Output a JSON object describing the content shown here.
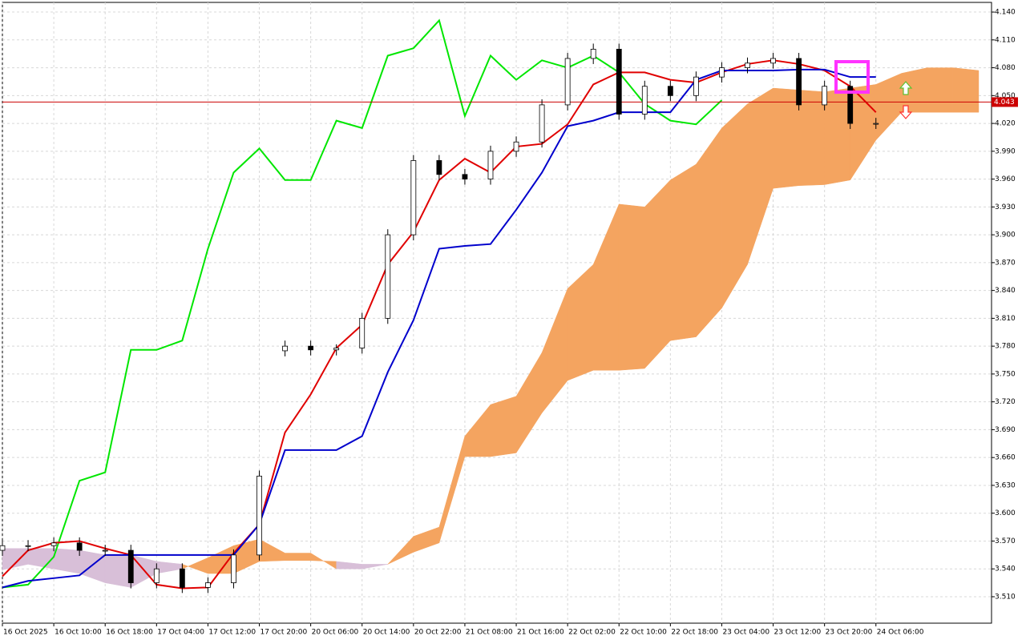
{
  "chart_data": {
    "type": "ichimoku",
    "xlim": [
      0,
      154
    ],
    "ylim": [
      3.4815,
      4.1504
    ],
    "grid": true,
    "xticks": [
      {
        "value": 0,
        "label": "16 Oct 2025"
      },
      {
        "value": 8,
        "label": "16 Oct 10:00"
      },
      {
        "value": 16,
        "label": "16 Oct 18:00"
      },
      {
        "value": 24,
        "label": "17 Oct 04:00"
      },
      {
        "value": 32,
        "label": "17 Oct 12:00"
      },
      {
        "value": 40,
        "label": "17 Oct 20:00"
      },
      {
        "value": 48,
        "label": "20 Oct 06:00"
      },
      {
        "value": 56,
        "label": "20 Oct 14:00"
      },
      {
        "value": 64,
        "label": "20 Oct 22:00"
      },
      {
        "value": 72,
        "label": "21 Oct 08:00"
      },
      {
        "value": 80,
        "label": "21 Oct 16:00"
      },
      {
        "value": 88,
        "label": "22 Oct 02:00"
      },
      {
        "value": 96,
        "label": "22 Oct 10:00"
      },
      {
        "value": 104,
        "label": "22 Oct 18:00"
      },
      {
        "value": 112,
        "label": "23 Oct 04:00"
      },
      {
        "value": 120,
        "label": "23 Oct 12:00"
      },
      {
        "value": 128,
        "label": "23 Oct 20:00"
      },
      {
        "value": 136,
        "label": "24 Oct 06:00"
      }
    ],
    "yticks": [
      {
        "value": 3.51,
        "label": "3.510"
      },
      {
        "value": 3.54,
        "label": "3.540"
      },
      {
        "value": 3.57,
        "label": "3.570"
      },
      {
        "value": 3.6,
        "label": "3.600"
      },
      {
        "value": 3.63,
        "label": "3.630"
      },
      {
        "value": 3.66,
        "label": "3.660"
      },
      {
        "value": 3.69,
        "label": "3.690"
      },
      {
        "value": 3.72,
        "label": "3.720"
      },
      {
        "value": 3.75,
        "label": "3.750"
      },
      {
        "value": 3.78,
        "label": "3.780"
      },
      {
        "value": 3.81,
        "label": "3.810"
      },
      {
        "value": 3.84,
        "label": "3.840"
      },
      {
        "value": 3.87,
        "label": "3.870"
      },
      {
        "value": 3.9,
        "label": "3.900"
      },
      {
        "value": 3.93,
        "label": "3.930"
      },
      {
        "value": 3.96,
        "label": "3.960"
      },
      {
        "value": 3.99,
        "label": "3.990"
      },
      {
        "value": 4.02,
        "label": "4.020"
      },
      {
        "value": 4.05,
        "label": "4.050"
      },
      {
        "value": 4.08,
        "label": "4.080"
      },
      {
        "value": 4.11,
        "label": "4.110"
      },
      {
        "value": 4.14,
        "label": "4.140"
      }
    ],
    "last_price": {
      "value": 4.043,
      "label": "4.043"
    },
    "x": [
      0,
      4,
      8,
      12,
      16,
      20,
      24,
      28,
      32,
      36,
      40,
      44,
      48,
      52,
      56,
      60,
      64,
      68,
      72,
      76,
      80,
      84,
      88,
      92,
      96,
      100,
      104,
      108,
      112,
      116,
      120,
      124,
      128,
      132,
      136
    ],
    "candles": {
      "open": [
        3.56,
        3.565,
        3.565,
        3.568,
        3.56,
        3.56,
        3.525,
        3.54,
        3.52,
        3.525,
        3.555,
        3.775,
        3.78,
        3.776,
        3.778,
        3.81,
        3.9,
        3.98,
        3.965,
        3.96,
        3.99,
        4.0,
        4.04,
        4.09,
        4.1,
        4.03,
        4.06,
        4.05,
        4.07,
        4.08,
        4.085,
        4.09,
        4.04,
        4.06,
        4.02
      ],
      "high": [
        3.571,
        3.571,
        3.574,
        3.574,
        3.566,
        3.566,
        3.546,
        3.546,
        3.531,
        3.561,
        3.646,
        3.786,
        3.786,
        3.782,
        3.816,
        3.906,
        3.986,
        3.986,
        3.971,
        3.996,
        4.006,
        4.046,
        4.096,
        4.106,
        4.106,
        4.066,
        4.066,
        4.076,
        4.086,
        4.091,
        4.096,
        4.096,
        4.066,
        4.066,
        4.026
      ],
      "low": [
        3.554,
        3.559,
        3.559,
        3.554,
        3.554,
        3.519,
        3.519,
        3.514,
        3.514,
        3.519,
        3.549,
        3.769,
        3.77,
        3.77,
        3.772,
        3.804,
        3.894,
        3.959,
        3.954,
        3.954,
        3.984,
        3.994,
        4.034,
        4.084,
        4.024,
        4.024,
        4.044,
        4.044,
        4.064,
        4.074,
        4.079,
        4.034,
        4.034,
        4.014,
        4.014
      ],
      "close": [
        3.565,
        3.565,
        3.568,
        3.56,
        3.56,
        3.525,
        3.54,
        3.52,
        3.525,
        3.555,
        3.64,
        3.78,
        3.776,
        3.778,
        3.81,
        3.9,
        3.98,
        3.965,
        3.96,
        3.99,
        4.0,
        4.04,
        4.09,
        4.1,
        4.03,
        4.06,
        4.05,
        4.07,
        4.08,
        4.085,
        4.09,
        4.04,
        4.06,
        4.02,
        4.02
      ]
    },
    "series": [
      {
        "color": "#00e600",
        "values": [
          3.52,
          3.523,
          3.553,
          3.635,
          3.644,
          3.776,
          3.776,
          3.786,
          3.885,
          3.967,
          3.993,
          3.959,
          3.959,
          4.023,
          4.015,
          4.093,
          4.101,
          4.131,
          4.028,
          4.093,
          4.067,
          4.088,
          4.08,
          4.093,
          4.075,
          4.041,
          4.023,
          4.019,
          4.045,
          null,
          null,
          null,
          null,
          null,
          null
        ]
      },
      {
        "color": "#e00000",
        "values": [
          3.532,
          3.56,
          3.568,
          3.57,
          3.562,
          3.555,
          3.523,
          3.519,
          3.52,
          3.557,
          3.588,
          3.687,
          3.728,
          3.778,
          3.803,
          3.868,
          3.903,
          3.959,
          3.982,
          3.967,
          3.995,
          3.998,
          4.019,
          4.062,
          4.075,
          4.075,
          4.067,
          4.064,
          4.075,
          4.084,
          4.088,
          4.084,
          4.077,
          4.06,
          4.032
        ]
      },
      {
        "color": "#0000cc",
        "values": [
          3.52,
          3.527,
          3.53,
          3.533,
          3.555,
          3.555,
          3.555,
          3.555,
          3.555,
          3.555,
          3.588,
          3.668,
          3.668,
          3.668,
          3.683,
          3.752,
          3.808,
          3.885,
          3.888,
          3.89,
          3.927,
          3.967,
          4.017,
          4.023,
          4.032,
          4.032,
          4.032,
          4.067,
          4.077,
          4.077,
          4.077,
          4.078,
          4.078,
          4.07,
          4.07
        ]
      }
    ],
    "cloud": {
      "up_color": "#f4a460",
      "down_color": "#d8bfd8",
      "x": [
        0,
        4,
        8,
        12,
        16,
        20,
        24,
        28,
        32,
        36,
        40,
        44,
        48,
        52,
        56,
        60,
        64,
        68,
        72,
        76,
        80,
        84,
        88,
        92,
        96,
        100,
        104,
        108,
        112,
        116,
        120,
        124,
        128,
        132,
        136,
        140,
        144,
        148,
        152
      ],
      "span_a": [
        3.539,
        3.545,
        3.54,
        3.535,
        3.525,
        3.52,
        3.535,
        3.54,
        3.552,
        3.565,
        3.572,
        3.557,
        3.557,
        3.54,
        3.54,
        3.545,
        3.575,
        3.585,
        3.683,
        3.717,
        3.726,
        3.773,
        3.842,
        3.868,
        3.933,
        3.93,
        3.959,
        3.976,
        4.015,
        4.041,
        4.058,
        4.056,
        4.054,
        4.058,
        4.062,
        4.074,
        4.08,
        4.08,
        4.077
      ],
      "span_b": [
        3.562,
        3.562,
        3.562,
        3.56,
        3.555,
        3.555,
        3.548,
        3.545,
        3.535,
        3.535,
        3.548,
        3.549,
        3.549,
        3.548,
        3.545,
        3.545,
        3.558,
        3.568,
        3.661,
        3.661,
        3.665,
        3.708,
        3.743,
        3.754,
        3.754,
        3.756,
        3.786,
        3.79,
        3.821,
        3.868,
        3.95,
        3.953,
        3.954,
        3.959,
        4.002,
        4.032,
        4.032,
        4.032,
        4.032
      ]
    }
  }
}
